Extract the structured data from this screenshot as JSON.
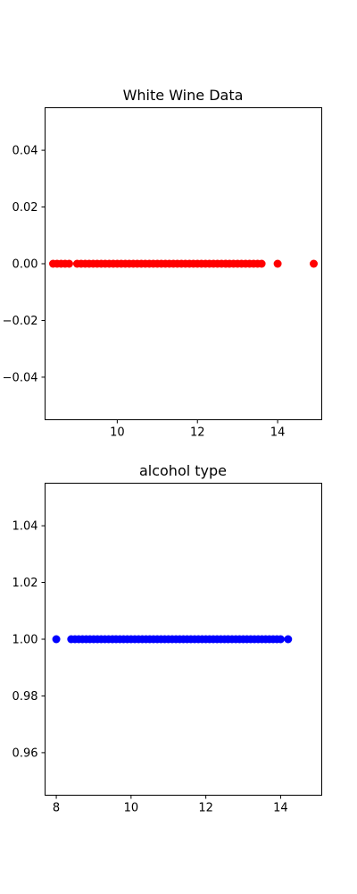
{
  "chart_data": [
    {
      "type": "scatter",
      "title": "White Wine Data",
      "xlabel": "",
      "ylabel": "",
      "xlim": [
        8.2,
        15.1
      ],
      "ylim": [
        -0.055,
        0.055
      ],
      "xticks": [
        10,
        12,
        14
      ],
      "yticks": [
        0.04,
        0.02,
        0.0,
        -0.02,
        -0.04
      ],
      "xtick_labels": [
        "10",
        "12",
        "14"
      ],
      "ytick_labels": [
        "0.04",
        "0.02",
        "0.00",
        "−0.02",
        "−0.04"
      ],
      "color": "#ff0000",
      "grid": false,
      "series": [
        {
          "x": [
            8.4,
            8.5,
            8.6,
            8.7,
            8.8,
            9.0,
            9.1,
            9.2,
            9.3,
            9.4,
            9.5,
            9.6,
            9.7,
            9.8,
            9.9,
            10.0,
            10.1,
            10.2,
            10.3,
            10.4,
            10.5,
            10.6,
            10.7,
            10.8,
            10.9,
            11.0,
            11.1,
            11.2,
            11.3,
            11.4,
            11.5,
            11.6,
            11.7,
            11.8,
            11.9,
            12.0,
            12.1,
            12.2,
            12.3,
            12.4,
            12.5,
            12.6,
            12.7,
            12.8,
            12.9,
            13.0,
            13.1,
            13.2,
            13.3,
            13.4,
            13.5,
            13.6,
            14.0,
            14.9
          ],
          "y": [
            0,
            0,
            0,
            0,
            0,
            0,
            0,
            0,
            0,
            0,
            0,
            0,
            0,
            0,
            0,
            0,
            0,
            0,
            0,
            0,
            0,
            0,
            0,
            0,
            0,
            0,
            0,
            0,
            0,
            0,
            0,
            0,
            0,
            0,
            0,
            0,
            0,
            0,
            0,
            0,
            0,
            0,
            0,
            0,
            0,
            0,
            0,
            0,
            0,
            0,
            0,
            0,
            0,
            0
          ]
        }
      ]
    },
    {
      "type": "scatter",
      "title": "alcohol type",
      "xlabel": "",
      "ylabel": "",
      "xlim": [
        7.7,
        15.1
      ],
      "ylim": [
        0.945,
        1.055
      ],
      "xticks": [
        8,
        10,
        12,
        14
      ],
      "yticks": [
        1.04,
        1.02,
        1.0,
        0.98,
        0.96
      ],
      "xtick_labels": [
        "8",
        "10",
        "12",
        "14"
      ],
      "ytick_labels": [
        "1.04",
        "1.02",
        "1.00",
        "0.98",
        "0.96"
      ],
      "color": "#0000ff",
      "grid": false,
      "series": [
        {
          "x": [
            8.0,
            8.4,
            8.5,
            8.6,
            8.7,
            8.8,
            8.9,
            9.0,
            9.1,
            9.2,
            9.3,
            9.4,
            9.5,
            9.6,
            9.7,
            9.8,
            9.9,
            10.0,
            10.1,
            10.2,
            10.3,
            10.4,
            10.5,
            10.6,
            10.7,
            10.8,
            10.9,
            11.0,
            11.1,
            11.2,
            11.3,
            11.4,
            11.5,
            11.6,
            11.7,
            11.8,
            11.9,
            12.0,
            12.1,
            12.2,
            12.3,
            12.4,
            12.5,
            12.6,
            12.7,
            12.8,
            12.9,
            13.0,
            13.1,
            13.2,
            13.3,
            13.4,
            13.5,
            13.6,
            13.7,
            13.8,
            13.9,
            14.0,
            14.2
          ],
          "y": [
            1,
            1,
            1,
            1,
            1,
            1,
            1,
            1,
            1,
            1,
            1,
            1,
            1,
            1,
            1,
            1,
            1,
            1,
            1,
            1,
            1,
            1,
            1,
            1,
            1,
            1,
            1,
            1,
            1,
            1,
            1,
            1,
            1,
            1,
            1,
            1,
            1,
            1,
            1,
            1,
            1,
            1,
            1,
            1,
            1,
            1,
            1,
            1,
            1,
            1,
            1,
            1,
            1,
            1,
            1,
            1,
            1,
            1,
            1
          ]
        }
      ]
    }
  ]
}
